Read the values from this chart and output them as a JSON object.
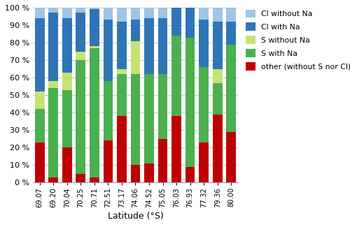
{
  "latitudes": [
    "69.07",
    "69.20",
    "70.04",
    "70.25",
    "70.71",
    "72.51",
    "73.17",
    "74.06",
    "74.52",
    "75.05",
    "76.03",
    "76.93",
    "77.32",
    "79.36",
    "80.00"
  ],
  "series": {
    "other": [
      23,
      3,
      20,
      5,
      3,
      24,
      38,
      10,
      11,
      25,
      38,
      9,
      23,
      39,
      29
    ],
    "S_with_Na": [
      19,
      51,
      33,
      65,
      74,
      34,
      24,
      52,
      51,
      37,
      46,
      74,
      43,
      18,
      50
    ],
    "S_without_Na": [
      10,
      4,
      10,
      5,
      1,
      0,
      3,
      19,
      0,
      0,
      0,
      0,
      0,
      8,
      0
    ],
    "Cl_with_Na": [
      42,
      39,
      31,
      22,
      21,
      35,
      27,
      12,
      32,
      32,
      16,
      17,
      27,
      27,
      13
    ],
    "Cl_without_Na": [
      6,
      3,
      6,
      3,
      1,
      7,
      8,
      7,
      6,
      6,
      0,
      0,
      7,
      8,
      8
    ]
  },
  "colors": {
    "other": "#BE0000",
    "S_with_Na": "#4CAF50",
    "S_without_Na": "#C5E375",
    "Cl_with_Na": "#2F75B6",
    "Cl_without_Na": "#9FC5E8"
  },
  "labels": {
    "other": "other (without S nor Cl)",
    "S_with_Na": "S with Na",
    "S_without_Na": "S without Na",
    "Cl_with_Na": "Cl with Na",
    "Cl_without_Na": "Cl without Na"
  },
  "xlabel": "Latitude (°S)",
  "figsize": [
    5.0,
    3.35
  ],
  "dpi": 100
}
